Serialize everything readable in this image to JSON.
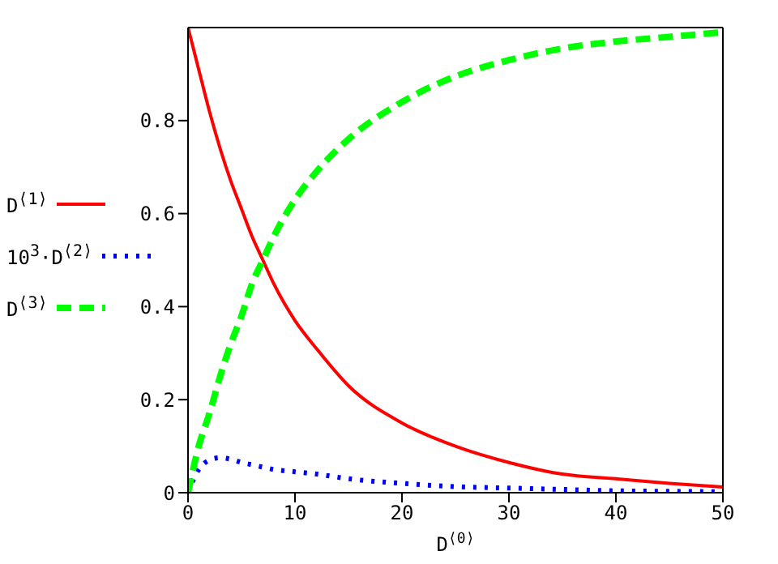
{
  "chart_data": {
    "type": "line",
    "xlabel": "D$^{⟨0⟩}$",
    "x": [
      0,
      1,
      2,
      3,
      4,
      5,
      6,
      7,
      8,
      10,
      12,
      15,
      20,
      25,
      30,
      35,
      40,
      45,
      50
    ],
    "series": [
      {
        "name": "D$^{⟨1⟩}$",
        "color": "#ff0000",
        "line_style": "solid",
        "values": [
          1,
          0.91,
          0.82,
          0.74,
          0.67,
          0.61,
          0.55,
          0.5,
          0.45,
          0.37,
          0.31,
          0.23,
          0.15,
          0.1,
          0.065,
          0.04,
          0.03,
          0.02,
          0.012
        ]
      },
      {
        "name": "10$^{3}$·D$^{⟨2⟩}$",
        "color": "#0000ff",
        "line_style": "dotted",
        "values": [
          0,
          0.05,
          0.07,
          0.075,
          0.072,
          0.065,
          0.06,
          0.055,
          0.05,
          0.045,
          0.04,
          0.03,
          0.02,
          0.013,
          0.01,
          0.007,
          0.004,
          0.003,
          0.002
        ]
      },
      {
        "name": "D$^{⟨3⟩}$",
        "color": "#00ff00",
        "line_style": "dashed",
        "values": [
          0,
          0.1,
          0.17,
          0.25,
          0.32,
          0.38,
          0.45,
          0.5,
          0.55,
          0.63,
          0.69,
          0.76,
          0.84,
          0.895,
          0.93,
          0.955,
          0.97,
          0.98,
          0.99
        ]
      }
    ],
    "xlim": [
      0,
      50
    ],
    "xticks": [
      0,
      10,
      20,
      30,
      40,
      50
    ],
    "ylim": [
      0,
      1
    ],
    "yticks": [
      0,
      0.2,
      0.4,
      0.6,
      0.8
    ],
    "legend": "left",
    "marker": "none"
  }
}
